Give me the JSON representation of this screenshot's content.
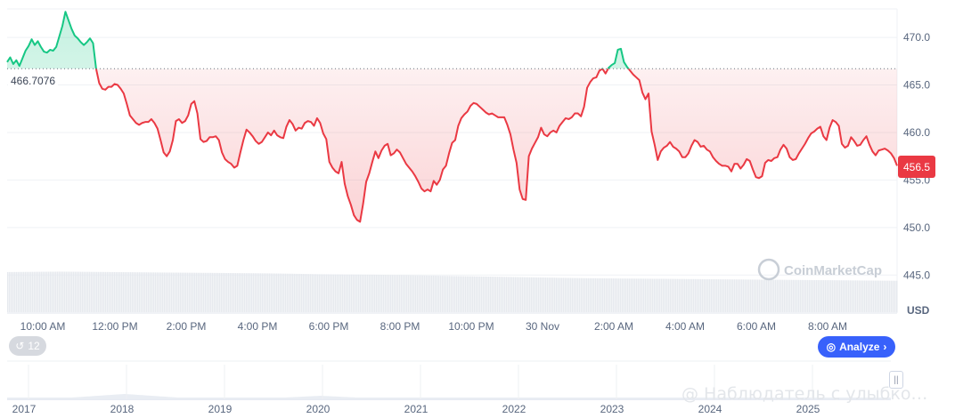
{
  "chart_data": {
    "type": "area",
    "currency": "USD",
    "reference_value": "466.7076",
    "current_price": "456.5",
    "ylim": [
      441,
      473
    ],
    "y_ticks": [
      "470.0",
      "465.0",
      "460.0",
      "455.0",
      "450.0",
      "445.0"
    ],
    "x_ticks": [
      "10:00 AM",
      "12:00 PM",
      "2:00 PM",
      "4:00 PM",
      "6:00 PM",
      "8:00 PM",
      "10:00 PM",
      "30 Nov",
      "2:00 AM",
      "4:00 AM",
      "6:00 AM",
      "8:00 AM"
    ],
    "series": [
      {
        "values": [
          467.4,
          467.9,
          467.2,
          467.6,
          467.0,
          467.8,
          468.6,
          469.1,
          469.8,
          469.2,
          469.6,
          469.0,
          468.5,
          468.4,
          468.7,
          468.6,
          469.0,
          470.1,
          471.2,
          472.7,
          471.8,
          470.9,
          470.2,
          469.9,
          469.5,
          469.2,
          469.5,
          469.9,
          469.4,
          466.7,
          465.2,
          464.6,
          464.5,
          464.8,
          464.8,
          465.1,
          465.0,
          464.6,
          464.1,
          463.0,
          461.8,
          461.4,
          461.0,
          460.8,
          461.0,
          461.1,
          461.1,
          461.4,
          461.0,
          460.4,
          459.2,
          457.9,
          457.5,
          458.0,
          459.2,
          461.2,
          461.4,
          461.0,
          461.2,
          461.8,
          463.0,
          463.3,
          462.0,
          459.3,
          459.0,
          459.1,
          459.5,
          459.5,
          459.6,
          459.2,
          457.9,
          457.2,
          456.9,
          456.7,
          456.3,
          456.5,
          457.9,
          459.2,
          460.3,
          460.0,
          459.6,
          459.1,
          458.8,
          459.0,
          459.5,
          460.0,
          459.7,
          460.2,
          459.7,
          459.5,
          459.4,
          460.6,
          461.3,
          460.9,
          460.2,
          460.5,
          460.4,
          461.0,
          461.2,
          461.1,
          460.7,
          461.5,
          461.0,
          459.9,
          459.3,
          456.9,
          456.3,
          455.9,
          455.7,
          456.9,
          454.6,
          453.3,
          452.4,
          451.3,
          450.8,
          450.6,
          452.5,
          454.8,
          455.7,
          456.9,
          458.0,
          457.3,
          458.1,
          458.6,
          458.8,
          457.6,
          457.8,
          458.2,
          457.9,
          457.3,
          456.7,
          456.3,
          455.9,
          455.4,
          454.8,
          454.1,
          453.8,
          454.0,
          453.8,
          454.9,
          454.5,
          455.0,
          456.1,
          456.5,
          457.8,
          458.9,
          459.2,
          460.7,
          461.5,
          461.9,
          462.2,
          462.8,
          463.1,
          463.0,
          462.7,
          462.4,
          462.1,
          461.9,
          462.0,
          461.8,
          461.6,
          461.6,
          461.6,
          460.8,
          459.8,
          458.2,
          456.8,
          454.0,
          453.0,
          452.9,
          457.5,
          458.3,
          458.9,
          459.5,
          460.5,
          459.8,
          459.6,
          460.0,
          460.2,
          460.0,
          460.7,
          461.1,
          461.5,
          461.4,
          461.6,
          462.0,
          462.0,
          461.7,
          462.7,
          464.7,
          465.3,
          465.7,
          465.8,
          466.5,
          466.7,
          466.2,
          466.8,
          467.1,
          467.3,
          468.7,
          468.8,
          467.4,
          466.9,
          466.5,
          466.1,
          465.8,
          465.5,
          464.2,
          463.5,
          464.1,
          460.1,
          458.7,
          457.1,
          458.0,
          458.4,
          458.6,
          459.0,
          458.5,
          458.3,
          458.0,
          457.4,
          457.4,
          457.8,
          458.6,
          459.2,
          459.0,
          458.5,
          458.6,
          458.2,
          458.0,
          457.4,
          457.0,
          456.7,
          456.5,
          456.5,
          456.4,
          455.9,
          456.7,
          456.7,
          456.2,
          456.6,
          457.2,
          457.0,
          456.1,
          455.3,
          455.2,
          455.4,
          456.8,
          457.1,
          457.0,
          457.3,
          457.4,
          458.2,
          458.7,
          458.3,
          457.4,
          457.1,
          457.2,
          457.8,
          458.3,
          458.8,
          459.4,
          459.9,
          460.1,
          460.4,
          460.6,
          459.6,
          459.2,
          460.5,
          461.3,
          461.1,
          460.7,
          458.8,
          458.4,
          458.6,
          459.5,
          459.1,
          458.6,
          458.7,
          459.2,
          459.6,
          458.7,
          458.0,
          457.6,
          458.1,
          458.2,
          458.3,
          458.1,
          457.8,
          457.3,
          456.5
        ]
      }
    ],
    "volume_relative": [
      0.92,
      0.93,
      0.92,
      0.91,
      0.9,
      0.89,
      0.87,
      0.86,
      0.84,
      0.82,
      0.8,
      0.78,
      0.77,
      0.76,
      0.75,
      0.74,
      0.73,
      0.72
    ],
    "grid": true,
    "navigator_years": [
      "2017",
      "2018",
      "2019",
      "2020",
      "2021",
      "2022",
      "2023",
      "2024",
      "2025"
    ]
  },
  "ui": {
    "history_count": "12",
    "analyze_label": "Analyze",
    "watermark": "CoinMarketCap",
    "source_caption": "@ Наблюдатель с улыбко…",
    "colors": {
      "up": "#16c784",
      "down": "#ea3943",
      "accent": "#3861fb"
    }
  }
}
